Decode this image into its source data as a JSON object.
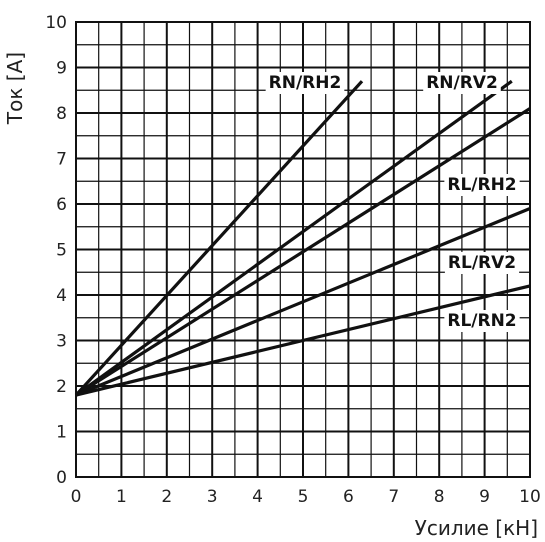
{
  "chart_data": {
    "type": "line",
    "xlabel": "Усилие [кН]",
    "ylabel": "Ток [А]",
    "xlim": [
      0,
      10
    ],
    "ylim": [
      0,
      10
    ],
    "x_ticks": [
      "0",
      "1",
      "2",
      "3",
      "4",
      "5",
      "6",
      "7",
      "8",
      "9",
      "10"
    ],
    "y_ticks": [
      "0",
      "1",
      "2",
      "3",
      "4",
      "5",
      "6",
      "7",
      "8",
      "9",
      "10"
    ],
    "grid": true,
    "grid_minor_step": 0.5,
    "line_color": "#111111",
    "series": [
      {
        "name": "RN/RH2",
        "x": [
          0,
          6.3
        ],
        "y": [
          1.8,
          8.7
        ]
      },
      {
        "name": "RN/RV2",
        "x": [
          0,
          9.6
        ],
        "y": [
          1.8,
          8.7
        ]
      },
      {
        "name": "RL/RH2",
        "x": [
          0,
          10
        ],
        "y": [
          1.8,
          8.1
        ]
      },
      {
        "name": "RL/RV2",
        "x": [
          0,
          10
        ],
        "y": [
          1.8,
          5.9
        ]
      },
      {
        "name": "RL/RN2",
        "x": [
          0,
          10
        ],
        "y": [
          1.8,
          4.2
        ]
      }
    ]
  }
}
